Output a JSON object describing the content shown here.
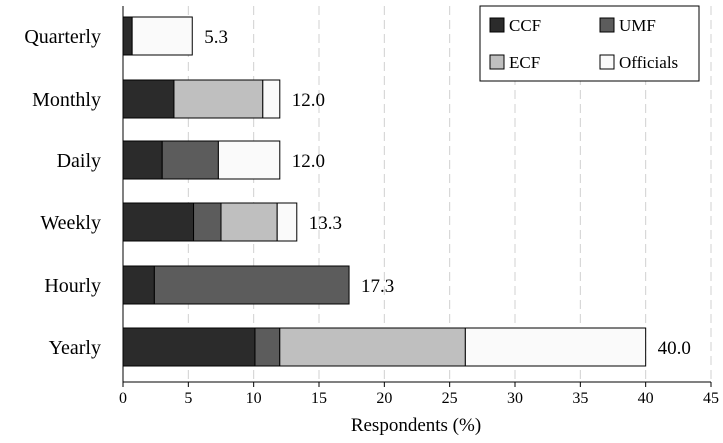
{
  "chart_data": {
    "type": "bar",
    "orientation": "horizontal",
    "stacked": true,
    "categories": [
      "Quarterly",
      "Monthly",
      "Daily",
      "Weekly",
      "Hourly",
      "Yearly"
    ],
    "series": [
      {
        "name": "CCF",
        "color": "#2b2b2b",
        "values": [
          0.7,
          3.9,
          3.0,
          5.4,
          2.4,
          10.1
        ]
      },
      {
        "name": "UMF",
        "color": "#5c5c5c",
        "values": [
          0.0,
          0.0,
          4.3,
          2.1,
          14.9,
          1.9
        ]
      },
      {
        "name": "ECF",
        "color": "#bfbfbf",
        "values": [
          0.0,
          6.8,
          0.0,
          4.3,
          0.0,
          14.2
        ]
      },
      {
        "name": "Officials",
        "color": "#fafafa",
        "values": [
          4.6,
          1.3,
          4.7,
          1.5,
          0.0,
          13.8
        ]
      }
    ],
    "totals": [
      "5.3",
      "12.0",
      "12.0",
      "13.3",
      "17.3",
      "40.0"
    ],
    "xlabel": "Respondents (%)",
    "xlim": [
      0,
      45
    ],
    "xticks": [
      0,
      5,
      10,
      15,
      20,
      25,
      30,
      35,
      40,
      45
    ],
    "grid": "vertical dashed",
    "legend_position": "top-right",
    "legend_columns": 2
  }
}
